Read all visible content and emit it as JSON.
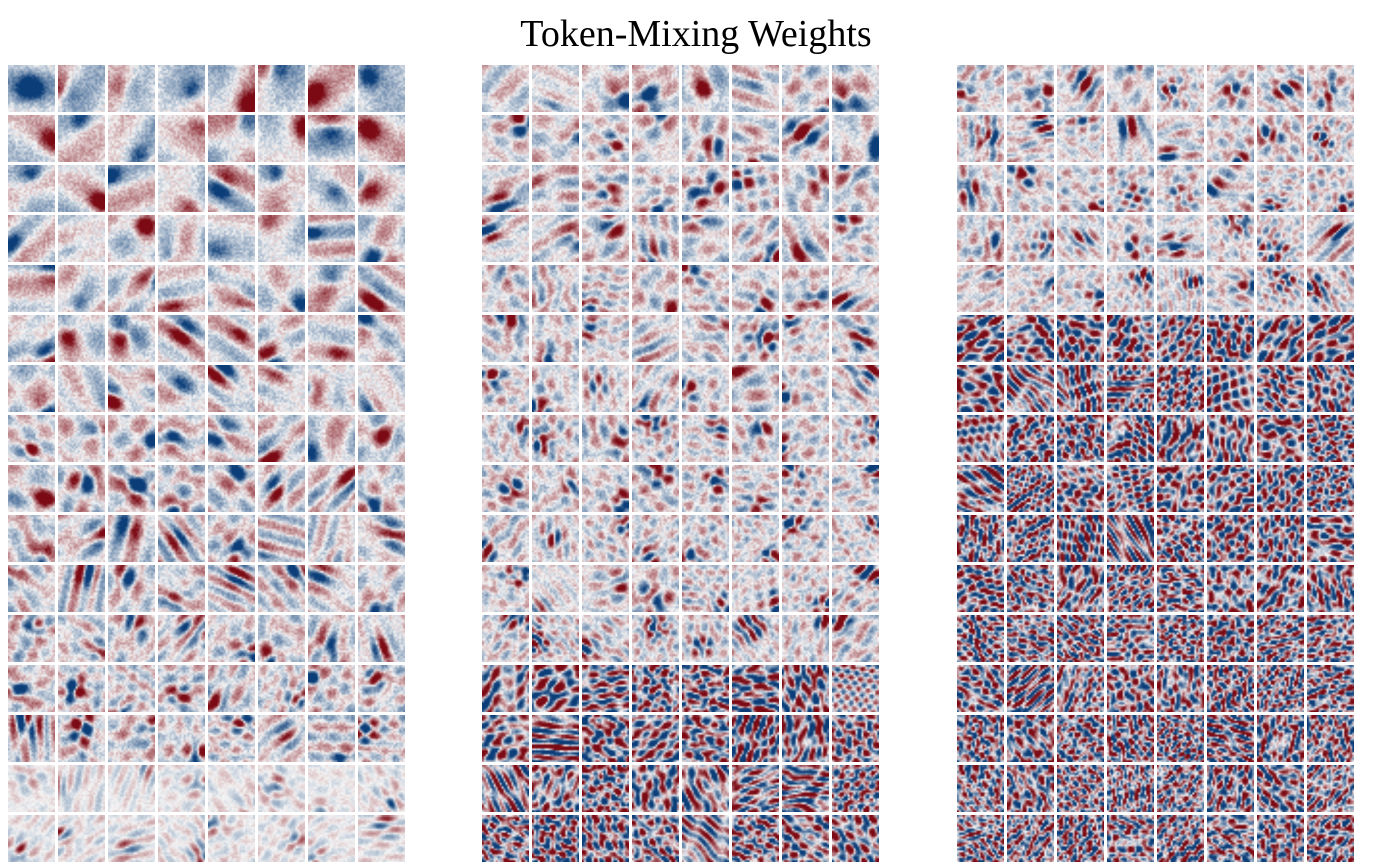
{
  "figure": {
    "title": "Token-Mixing Weights"
  },
  "panels": [
    {
      "name": "panel-1",
      "rows": 16,
      "cols": 8,
      "seed": 11,
      "palette": {
        "neg": "#0b3d78",
        "pos": "#7b0a14",
        "mid": "#f6f6f6"
      }
    },
    {
      "name": "panel-2",
      "rows": 16,
      "cols": 8,
      "seed": 29,
      "palette": {
        "neg": "#0b3d78",
        "pos": "#7b0a14",
        "mid": "#f6f6f6"
      }
    },
    {
      "name": "panel-3",
      "rows": 16,
      "cols": 8,
      "seed": 47,
      "palette": {
        "neg": "#0b3d78",
        "pos": "#7b0a14",
        "mid": "#f6f6f6"
      }
    }
  ]
}
